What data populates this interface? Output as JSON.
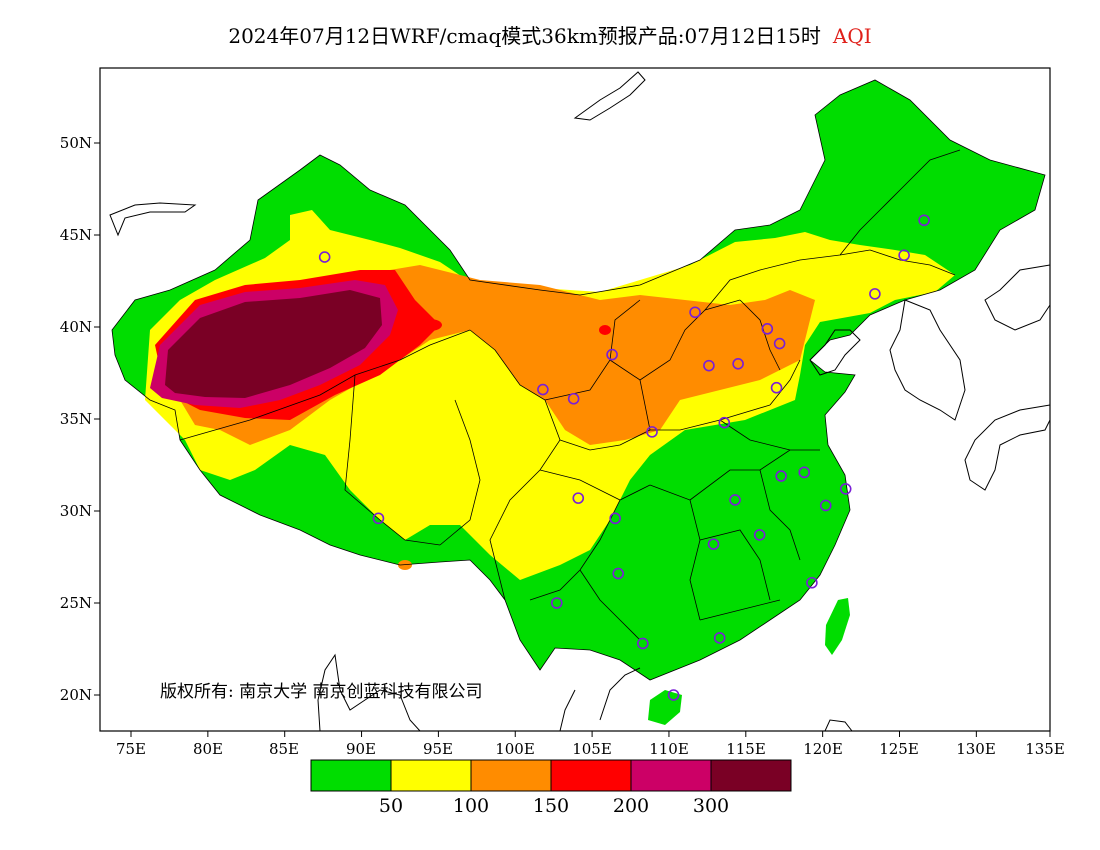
{
  "title": {
    "main": "2024年07月12日WRF/cmaq模式36km预报产品:07月12日15时",
    "variable": "AQI"
  },
  "map": {
    "lat_labels": [
      "50N",
      "45N",
      "40N",
      "35N",
      "30N",
      "25N",
      "20N"
    ],
    "lon_labels": [
      "75E",
      "80E",
      "85E",
      "90E",
      "95E",
      "100E",
      "105E",
      "110E",
      "115E",
      "120E",
      "125E",
      "130E",
      "135E"
    ],
    "copyright": "版权所有: 南京大学  南京创蓝科技有限公司"
  },
  "colorbar": {
    "colors": [
      "#00dd00",
      "#ffff00",
      "#ff8c00",
      "#ff0000",
      "#cc0066",
      "#7a0025"
    ],
    "labels": [
      "50",
      "100",
      "150",
      "200",
      "300"
    ]
  },
  "stations": [
    [
      87.6,
      43.8
    ],
    [
      101.8,
      36.6
    ],
    [
      103.8,
      36.1
    ],
    [
      106.3,
      38.5
    ],
    [
      111.7,
      40.8
    ],
    [
      112.6,
      37.9
    ],
    [
      114.5,
      38.0
    ],
    [
      116.4,
      39.9
    ],
    [
      117.2,
      39.1
    ],
    [
      117.0,
      36.7
    ],
    [
      113.6,
      34.8
    ],
    [
      108.9,
      34.3
    ],
    [
      104.1,
      30.7
    ],
    [
      106.5,
      29.6
    ],
    [
      106.7,
      26.6
    ],
    [
      102.7,
      25.0
    ],
    [
      108.3,
      22.8
    ],
    [
      113.3,
      23.1
    ],
    [
      110.3,
      20.0
    ],
    [
      112.9,
      28.2
    ],
    [
      114.3,
      30.6
    ],
    [
      115.9,
      28.7
    ],
    [
      117.3,
      31.9
    ],
    [
      118.8,
      32.1
    ],
    [
      120.2,
      30.3
    ],
    [
      121.5,
      31.2
    ],
    [
      119.3,
      26.1
    ],
    [
      123.4,
      41.8
    ],
    [
      125.3,
      43.9
    ],
    [
      126.6,
      45.8
    ],
    [
      91.1,
      29.6
    ]
  ]
}
